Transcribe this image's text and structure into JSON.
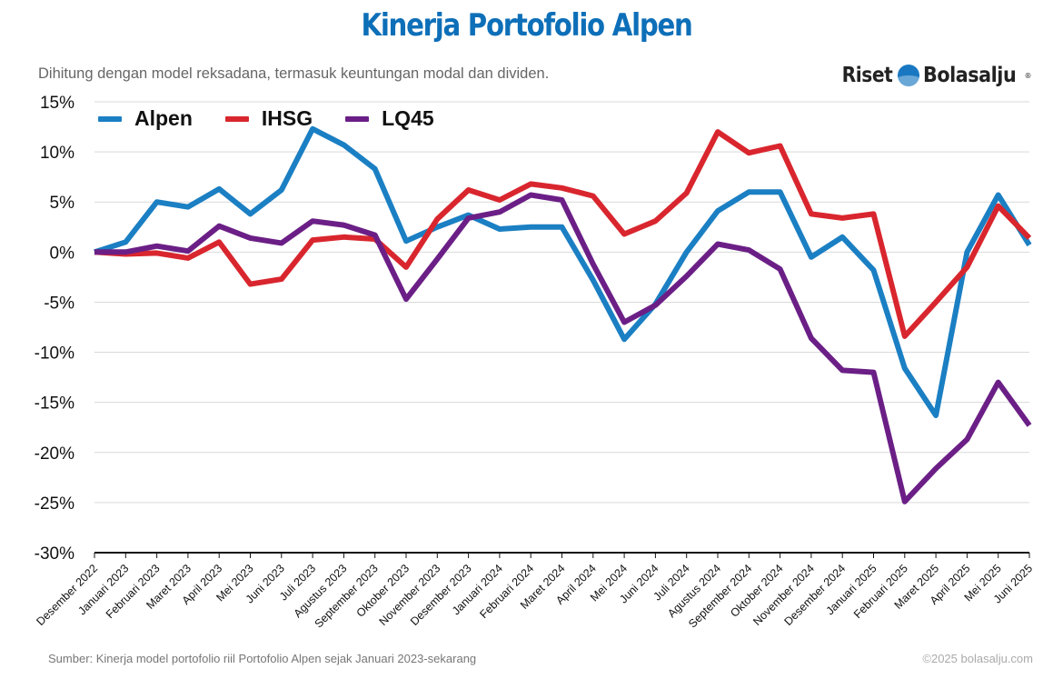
{
  "header": {
    "title": "Kinerja Portofolio Alpen",
    "subtitle": "Dihitung dengan model reksadana, termasuk keuntungan modal dan dividen.",
    "brand_left": "Riset",
    "brand_right": "Bolasalju",
    "brand_mark": "®"
  },
  "footer": {
    "source": "Sumber: Kinerja model portofolio riil Portofolio Alpen sejak Januari 2023-sekarang",
    "copyright": "©2025 bolasalju.com"
  },
  "colors": {
    "title": "#0d6fb8",
    "brand_ball": "#1a78c2",
    "grid": "#d9d9d9",
    "axis": "#111111",
    "Alpen": "#1b7fc3",
    "IHSG": "#d9262e",
    "LQ45": "#6b1f86"
  },
  "chart_data": {
    "type": "line",
    "title": "Kinerja Portofolio Alpen",
    "xlabel": "",
    "ylabel": "",
    "ylim": [
      -30,
      15
    ],
    "yticks": [
      15,
      10,
      5,
      0,
      -5,
      -10,
      -15,
      -20,
      -25,
      -30
    ],
    "ytick_labels": [
      "15%",
      "10%",
      "5%",
      "0%",
      "-5%",
      "-10%",
      "-15%",
      "-20%",
      "-25%",
      "-30%"
    ],
    "grid": true,
    "legend_position": "top-left",
    "categories": [
      "Desember 2022",
      "Januari 2023",
      "Februari 2023",
      "Maret 2023",
      "April 2023",
      "Mei 2023",
      "Juni 2023",
      "Juli 2023",
      "Agustus 2023",
      "September 2023",
      "Oktober 2023",
      "November 2023",
      "Desember 2023",
      "Januari 2024",
      "Februari 2024",
      "Maret 2024",
      "April 2024",
      "Mei 2024",
      "Juni 2024",
      "Juli 2024",
      "Agustus 2024",
      "September 2024",
      "Oktober 2024",
      "November 2024",
      "Desember 2024",
      "Januari 2025",
      "Februari 2025",
      "Maret 2025",
      "April 2025",
      "Mei 2025",
      "Juni 2025"
    ],
    "series": [
      {
        "name": "Alpen",
        "values": [
          0,
          1.0,
          5.0,
          4.5,
          6.3,
          3.8,
          6.2,
          12.3,
          10.7,
          8.3,
          1.1,
          2.5,
          3.7,
          2.3,
          2.5,
          2.5,
          -2.8,
          -8.7,
          -5.2,
          0.0,
          4.1,
          6.0,
          6.0,
          -0.5,
          1.5,
          -1.8,
          -11.6,
          -16.3,
          0.0,
          5.7,
          0.7
        ]
      },
      {
        "name": "IHSG",
        "values": [
          0,
          -0.2,
          -0.1,
          -0.6,
          1.0,
          -3.2,
          -2.7,
          1.2,
          1.5,
          1.3,
          -1.5,
          3.3,
          6.2,
          5.2,
          6.8,
          6.4,
          5.6,
          1.8,
          3.1,
          5.9,
          12.0,
          9.9,
          10.6,
          3.8,
          3.4,
          3.8,
          -8.4,
          -5.0,
          -1.5,
          4.6,
          1.4
        ]
      },
      {
        "name": "LQ45",
        "values": [
          0,
          0.0,
          0.6,
          0.1,
          2.6,
          1.4,
          0.9,
          3.1,
          2.7,
          1.7,
          -4.7,
          -0.7,
          3.4,
          4.0,
          5.7,
          5.2,
          -1.2,
          -7.0,
          -5.3,
          -2.4,
          0.8,
          0.2,
          -1.7,
          -8.6,
          -11.8,
          -12.0,
          -24.9,
          -21.6,
          -18.7,
          -13.0,
          -17.3
        ]
      }
    ]
  }
}
